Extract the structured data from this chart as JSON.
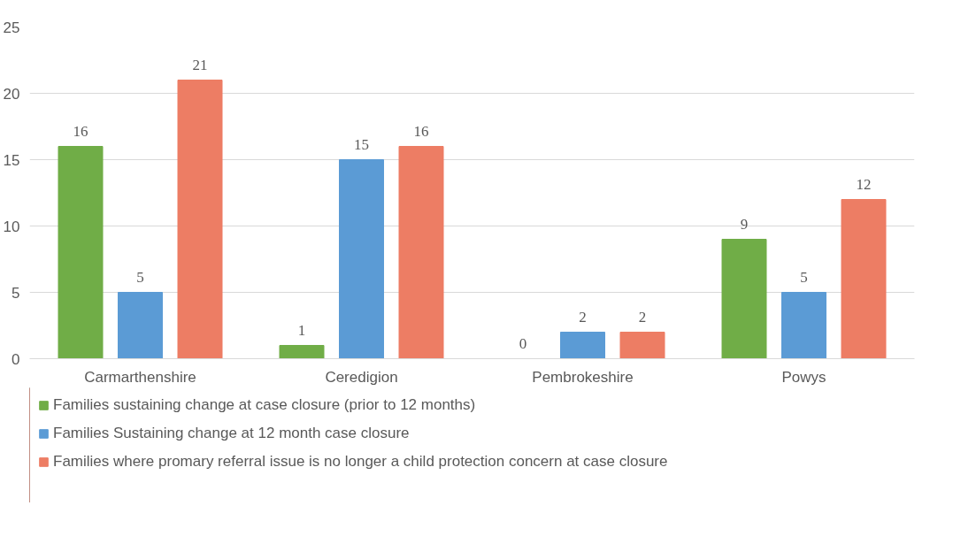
{
  "chart_data": {
    "type": "bar",
    "categories": [
      "Carmarthenshire",
      "Ceredigion",
      "Pembrokeshire",
      "Powys"
    ],
    "series": [
      {
        "name": "Families sustaining change at case closure (prior to 12 months)",
        "color": "#70ad47",
        "values": [
          16,
          1,
          0,
          9
        ]
      },
      {
        "name": "Families Sustaining change at 12 month case closure",
        "color": "#5b9bd5",
        "values": [
          5,
          15,
          2,
          5
        ]
      },
      {
        "name": "Families where promary referral issue is no longer a child protection concern at case closure",
        "color": "#ed7d64",
        "values": [
          21,
          16,
          2,
          12
        ]
      }
    ],
    "ylim": [
      0,
      25
    ],
    "yticks": [
      0,
      5,
      10,
      15,
      20,
      25
    ],
    "grid": "y",
    "legend": "bottom",
    "data_labels": true
  }
}
